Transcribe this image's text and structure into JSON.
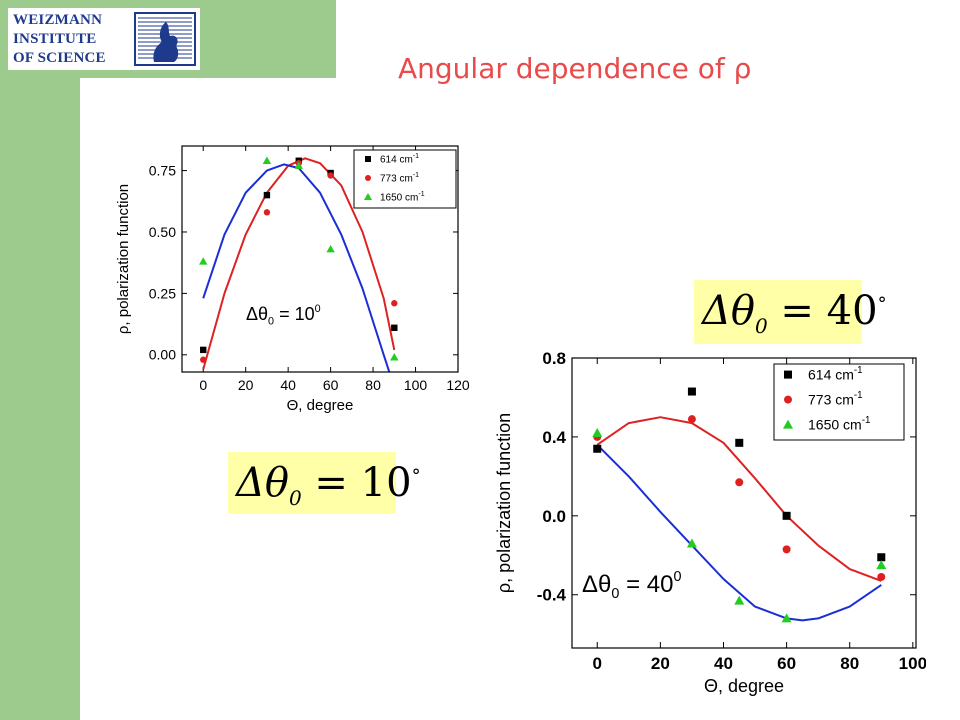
{
  "header": {
    "logo_lines": [
      "WEIZMANN",
      "INSTITUTE",
      "OF SCIENCE"
    ],
    "title": "Angular dependence of ρ"
  },
  "equations": {
    "small": {
      "lhs": "Δθ",
      "sub": "0",
      "eq": "=",
      "val": "10",
      "deg": "°"
    },
    "large": {
      "lhs": "Δθ",
      "sub": "0",
      "eq": "=",
      "val": "40",
      "deg": "°"
    }
  },
  "colors": {
    "series_614": "#000000",
    "series_773": "#e02020",
    "series_1650": "#22cc22",
    "fit_red": "#dd2222",
    "fit_blue": "#1a2ed6",
    "accent_title": "#e94b4b",
    "sidebar": "#9dcb8d",
    "equation_bg": "#ffffa8"
  },
  "chart_data": [
    {
      "type": "scatter",
      "xlabel": "Θ, degree",
      "ylabel": "ρ, polarization function",
      "xlim": [
        -10,
        120
      ],
      "ylim": [
        -0.07,
        0.85
      ],
      "xticks": [
        "0",
        "20",
        "40",
        "60",
        "80",
        "100",
        "120"
      ],
      "yticks": [
        "0.00",
        "0.25",
        "0.50",
        "0.75"
      ],
      "annotation": {
        "prefix": "Δθ",
        "sub": "0",
        "text": " = 10",
        "sup": "0"
      },
      "legend": {
        "position": "top-right",
        "entries": [
          {
            "label": "614 cm",
            "sup": "-1",
            "marker": "square"
          },
          {
            "label": "773 cm",
            "sup": "-1",
            "marker": "circle"
          },
          {
            "label": "1650 cm",
            "sup": "-1",
            "marker": "triangle"
          }
        ]
      },
      "series": [
        {
          "marker": "square",
          "x": [
            0,
            30,
            45,
            60,
            90
          ],
          "y": [
            0.02,
            0.65,
            0.79,
            0.74,
            0.11
          ]
        },
        {
          "marker": "circle",
          "x": [
            0,
            30,
            45,
            60,
            90
          ],
          "y": [
            -0.02,
            0.58,
            0.78,
            0.73,
            0.21
          ]
        },
        {
          "marker": "triangle",
          "x": [
            0,
            30,
            45,
            60,
            90
          ],
          "y": [
            0.38,
            0.79,
            0.77,
            0.43,
            -0.01
          ]
        }
      ],
      "fits": [
        {
          "color": "red",
          "x": [
            0,
            10,
            20,
            30,
            40,
            48,
            55,
            65,
            75,
            85,
            90
          ],
          "y": [
            -0.06,
            0.25,
            0.49,
            0.66,
            0.77,
            0.8,
            0.78,
            0.69,
            0.5,
            0.23,
            0.02
          ]
        },
        {
          "color": "blue",
          "x": [
            0,
            10,
            20,
            30,
            38,
            45,
            55,
            65,
            75,
            85,
            88
          ],
          "y": [
            0.23,
            0.49,
            0.66,
            0.75,
            0.775,
            0.76,
            0.66,
            0.49,
            0.27,
            0.0,
            -0.08
          ]
        }
      ]
    },
    {
      "type": "scatter",
      "xlabel": "Θ, degree",
      "ylabel": "ρ, polarization function",
      "xlim": [
        -8,
        101
      ],
      "ylim": [
        -0.67,
        0.8
      ],
      "xticks": [
        "0",
        "20",
        "40",
        "60",
        "80",
        "100"
      ],
      "yticks": [
        "-0.4",
        "0.0",
        "0.4",
        "0.8"
      ],
      "annotation": {
        "prefix": "Δθ",
        "sub": "0",
        "text": " = 40",
        "sup": "0"
      },
      "legend": {
        "position": "top-right",
        "entries": [
          {
            "label": "614 cm",
            "sup": "-1",
            "marker": "square"
          },
          {
            "label": "773 cm",
            "sup": "-1",
            "marker": "circle"
          },
          {
            "label": "1650 cm",
            "sup": "-1",
            "marker": "triangle"
          }
        ]
      },
      "series": [
        {
          "marker": "square",
          "x": [
            0,
            30,
            45,
            60,
            90
          ],
          "y": [
            0.34,
            0.63,
            0.37,
            0.0,
            -0.21
          ]
        },
        {
          "marker": "circle",
          "x": [
            0,
            30,
            45,
            60,
            90
          ],
          "y": [
            0.4,
            0.49,
            0.17,
            -0.17,
            -0.31
          ]
        },
        {
          "marker": "triangle",
          "x": [
            0,
            30,
            45,
            60,
            90
          ],
          "y": [
            0.42,
            -0.14,
            -0.43,
            -0.52,
            -0.25
          ]
        }
      ],
      "fits": [
        {
          "color": "red",
          "x": [
            0,
            10,
            20,
            30,
            40,
            50,
            60,
            70,
            80,
            90
          ],
          "y": [
            0.36,
            0.47,
            0.5,
            0.47,
            0.37,
            0.19,
            0.0,
            -0.15,
            -0.27,
            -0.33
          ]
        },
        {
          "color": "blue",
          "x": [
            0,
            10,
            20,
            30,
            40,
            50,
            60,
            65,
            70,
            80,
            90
          ],
          "y": [
            0.36,
            0.2,
            0.02,
            -0.15,
            -0.32,
            -0.46,
            -0.52,
            -0.53,
            -0.52,
            -0.46,
            -0.35
          ]
        }
      ]
    }
  ]
}
